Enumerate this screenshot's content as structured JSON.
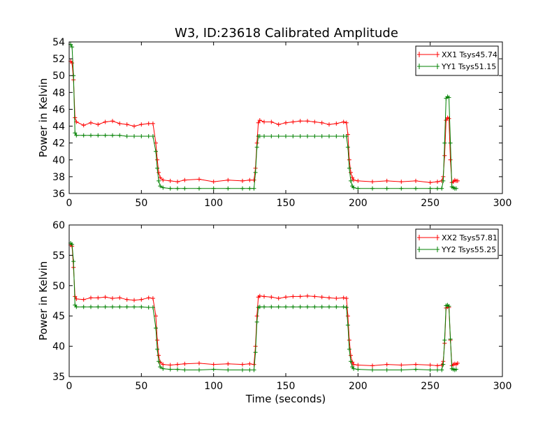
{
  "figure": {
    "title": "W3, ID:23618 Calibrated Amplitude"
  },
  "colors": {
    "xx": "#ff0000",
    "yy": "#008000",
    "axes": "#000000"
  },
  "chart_data": [
    {
      "type": "line",
      "xlabel": "",
      "ylabel": "Power in Kelvin",
      "xlim": [
        0,
        300
      ],
      "ylim": [
        36,
        54
      ],
      "xticks": [
        0,
        50,
        100,
        150,
        200,
        250,
        300
      ],
      "yticks": [
        36,
        38,
        40,
        42,
        44,
        46,
        48,
        50,
        52,
        54
      ],
      "grid": false,
      "legend_position": "top-right",
      "marker": "plus",
      "series": [
        {
          "name": "XX1 Tsys45.74",
          "color": "#ff0000",
          "x": [
            1,
            2,
            3,
            4,
            5,
            10,
            15,
            20,
            25,
            30,
            35,
            40,
            45,
            50,
            55,
            58,
            60,
            61,
            62,
            63,
            65,
            70,
            75,
            80,
            90,
            100,
            110,
            120,
            125,
            128,
            129,
            130,
            131,
            132,
            135,
            140,
            145,
            150,
            155,
            160,
            165,
            170,
            175,
            180,
            185,
            190,
            192,
            193,
            194,
            195,
            196,
            197,
            200,
            210,
            220,
            230,
            240,
            250,
            255,
            258,
            259,
            260,
            261,
            262,
            263,
            264,
            265,
            266,
            267,
            268,
            269
          ],
          "y": [
            51.7,
            51.5,
            49.5,
            45.0,
            44.5,
            44.1,
            44.4,
            44.2,
            44.5,
            44.6,
            44.3,
            44.2,
            44.0,
            44.2,
            44.3,
            44.3,
            42.0,
            40.0,
            38.5,
            37.9,
            37.6,
            37.5,
            37.4,
            37.6,
            37.7,
            37.4,
            37.6,
            37.5,
            37.6,
            37.6,
            39.0,
            42.0,
            44.4,
            44.7,
            44.5,
            44.5,
            44.2,
            44.4,
            44.5,
            44.6,
            44.6,
            44.5,
            44.4,
            44.2,
            44.3,
            44.5,
            44.4,
            43.0,
            40.0,
            38.5,
            37.9,
            37.6,
            37.5,
            37.4,
            37.5,
            37.4,
            37.5,
            37.3,
            37.4,
            37.5,
            38.0,
            40.5,
            44.7,
            45.0,
            44.9,
            40.0,
            37.3,
            37.4,
            37.6,
            37.5,
            37.5
          ]
        },
        {
          "name": "YY1 Tsys51.15",
          "color": "#008000",
          "x": [
            1,
            2,
            3,
            4,
            5,
            10,
            15,
            20,
            25,
            30,
            35,
            40,
            45,
            50,
            55,
            58,
            60,
            61,
            62,
            63,
            65,
            70,
            75,
            80,
            90,
            100,
            110,
            120,
            125,
            128,
            129,
            130,
            131,
            132,
            135,
            140,
            145,
            150,
            155,
            160,
            165,
            170,
            175,
            180,
            185,
            190,
            192,
            193,
            194,
            195,
            196,
            197,
            200,
            210,
            220,
            230,
            240,
            250,
            255,
            258,
            259,
            260,
            261,
            262,
            263,
            264,
            265,
            266,
            267,
            268
          ],
          "y": [
            53.7,
            53.4,
            50.0,
            43.2,
            42.9,
            42.9,
            42.9,
            42.9,
            42.9,
            42.9,
            42.9,
            42.8,
            42.8,
            42.8,
            42.8,
            42.8,
            41.0,
            39.0,
            37.5,
            36.9,
            36.7,
            36.6,
            36.6,
            36.6,
            36.6,
            36.6,
            36.6,
            36.6,
            36.6,
            36.6,
            38.5,
            41.5,
            42.8,
            42.8,
            42.8,
            42.8,
            42.8,
            42.8,
            42.8,
            42.8,
            42.8,
            42.8,
            42.8,
            42.8,
            42.8,
            42.8,
            42.8,
            41.5,
            39.0,
            37.5,
            36.9,
            36.7,
            36.6,
            36.6,
            36.6,
            36.6,
            36.6,
            36.6,
            36.6,
            36.6,
            37.5,
            42.0,
            47.3,
            47.5,
            47.4,
            42.0,
            36.8,
            36.7,
            36.6,
            36.6
          ]
        }
      ]
    },
    {
      "type": "line",
      "xlabel": "Time (seconds)",
      "ylabel": "Power in Kelvin",
      "xlim": [
        0,
        300
      ],
      "ylim": [
        35,
        60
      ],
      "xticks": [
        0,
        50,
        100,
        150,
        200,
        250,
        300
      ],
      "yticks": [
        35,
        40,
        45,
        50,
        55,
        60
      ],
      "grid": false,
      "legend_position": "top-right",
      "marker": "plus",
      "series": [
        {
          "name": "XX2 Tsys57.81",
          "color": "#ff0000",
          "x": [
            1,
            2,
            3,
            4,
            5,
            10,
            15,
            20,
            25,
            30,
            35,
            40,
            45,
            50,
            55,
            58,
            60,
            61,
            62,
            63,
            65,
            70,
            75,
            80,
            90,
            100,
            110,
            120,
            125,
            128,
            129,
            130,
            131,
            132,
            135,
            140,
            145,
            150,
            155,
            160,
            165,
            170,
            175,
            180,
            185,
            190,
            192,
            193,
            194,
            195,
            196,
            197,
            200,
            210,
            220,
            230,
            240,
            250,
            255,
            258,
            259,
            260,
            261,
            262,
            263,
            264,
            265,
            266,
            267,
            268,
            269
          ],
          "y": [
            56.7,
            56.5,
            53.0,
            48.2,
            47.8,
            47.7,
            48.0,
            48.0,
            48.1,
            47.9,
            48.0,
            47.7,
            47.6,
            47.7,
            48.0,
            47.9,
            45.0,
            41.0,
            38.5,
            37.4,
            37.0,
            36.9,
            37.0,
            37.1,
            37.2,
            37.0,
            37.1,
            37.0,
            37.1,
            37.0,
            40.0,
            45.0,
            48.1,
            48.3,
            48.2,
            48.1,
            47.9,
            48.1,
            48.2,
            48.2,
            48.3,
            48.2,
            48.1,
            48.0,
            47.9,
            48.0,
            47.9,
            45.0,
            41.0,
            38.5,
            37.4,
            37.0,
            36.9,
            36.8,
            37.0,
            36.9,
            37.0,
            36.9,
            36.8,
            36.9,
            37.5,
            40.5,
            46.3,
            46.5,
            46.4,
            41.0,
            36.8,
            37.0,
            37.1,
            37.0,
            37.2
          ]
        },
        {
          "name": "YY2 Tsys55.25",
          "color": "#008000",
          "x": [
            1,
            2,
            3,
            4,
            5,
            10,
            15,
            20,
            25,
            30,
            35,
            40,
            45,
            50,
            55,
            58,
            60,
            61,
            62,
            63,
            65,
            70,
            75,
            80,
            90,
            100,
            110,
            120,
            125,
            128,
            129,
            130,
            131,
            132,
            135,
            140,
            145,
            150,
            155,
            160,
            165,
            170,
            175,
            180,
            185,
            190,
            192,
            193,
            194,
            195,
            196,
            197,
            200,
            210,
            220,
            230,
            240,
            250,
            255,
            258,
            259,
            260,
            261,
            262,
            263,
            264,
            265,
            266,
            267,
            268
          ],
          "y": [
            57.0,
            56.8,
            54.0,
            46.8,
            46.5,
            46.5,
            46.5,
            46.5,
            46.5,
            46.5,
            46.5,
            46.5,
            46.5,
            46.5,
            46.4,
            46.4,
            43.0,
            39.5,
            37.5,
            36.6,
            36.3,
            36.2,
            36.2,
            36.1,
            36.1,
            36.2,
            36.1,
            36.1,
            36.1,
            36.1,
            39.0,
            44.0,
            46.4,
            46.5,
            46.5,
            46.5,
            46.5,
            46.5,
            46.5,
            46.5,
            46.5,
            46.5,
            46.5,
            46.5,
            46.5,
            46.5,
            46.4,
            43.5,
            39.5,
            37.5,
            36.6,
            36.3,
            36.2,
            36.1,
            36.1,
            36.1,
            36.2,
            36.1,
            36.1,
            36.1,
            37.0,
            41.0,
            46.7,
            46.8,
            46.6,
            41.2,
            36.3,
            36.2,
            36.1,
            36.2
          ]
        }
      ]
    }
  ]
}
